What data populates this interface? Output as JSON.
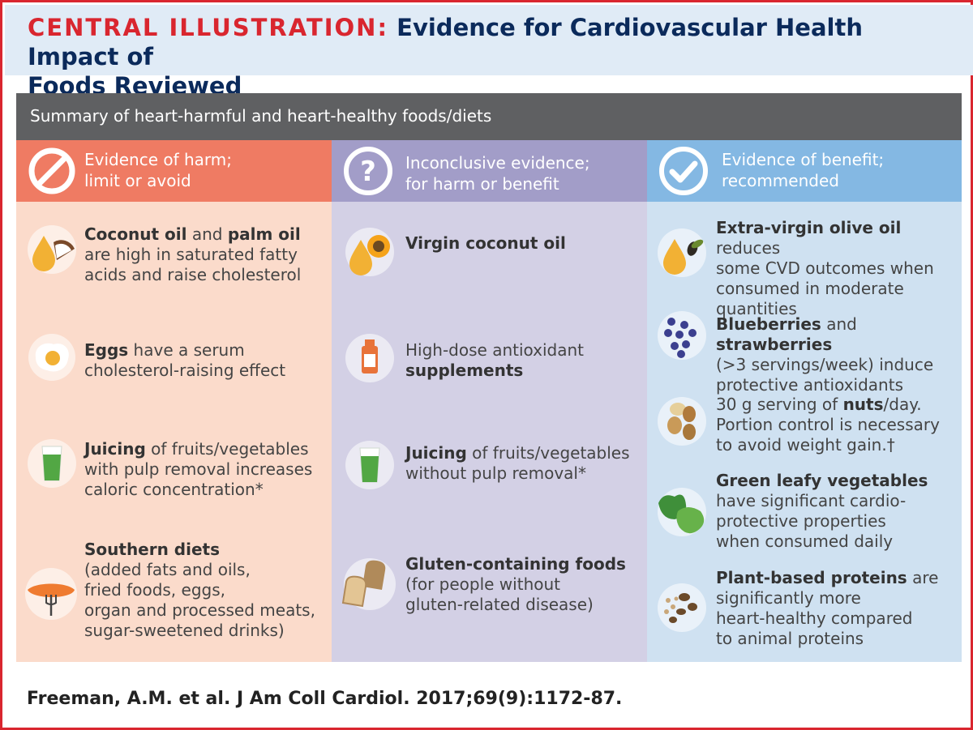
{
  "header": {
    "label": "CENTRAL ILLUSTRATION:",
    "title_line1": "Evidence for Cardiovascular Health Impact of",
    "title_line2": "Foods Reviewed"
  },
  "summary": "Summary of heart-harmful and heart-healthy foods/diets",
  "columns": {
    "harm": {
      "heading_line1": "Evidence of harm;",
      "heading_line2": "limit or avoid",
      "color": "#ef7b63",
      "bg": "#fbdbcb",
      "items": [
        {
          "icon": "coconut-oil-icon",
          "b1": "Coconut oil",
          "t1": " and ",
          "b2": "palm oil",
          "rest": "are high in saturated fatty acids and raise cholesterol"
        },
        {
          "icon": "egg-icon",
          "b1": "Eggs",
          "t1": " have a serum",
          "rest": "cholesterol-raising effect"
        },
        {
          "icon": "juice-icon",
          "b1": "Juicing",
          "t1": " of fruits/vegetables",
          "rest": "with pulp removal increases caloric concentration*"
        },
        {
          "icon": "sausage-fork-icon",
          "b1": "Southern diets",
          "rest1": "(added fats and oils,",
          "rest2": "fried foods, eggs,",
          "rest3": "organ and processed meats,",
          "rest4": "sugar-sweetened drinks)"
        }
      ]
    },
    "inconclusive": {
      "heading_line1": "Inconclusive evidence;",
      "heading_line2": "for harm or benefit",
      "color": "#a29dc8",
      "bg": "#d3d0e5",
      "items": [
        {
          "icon": "virgin-coconut-oil-icon",
          "b1": "Virgin coconut oil"
        },
        {
          "icon": "supplement-bottle-icon",
          "t1": "High-dose antioxidant",
          "b1": "supplements"
        },
        {
          "icon": "juice-icon",
          "b1": "Juicing",
          "t1": " of fruits/vegetables",
          "rest": "without pulp removal*"
        },
        {
          "icon": "bread-icon",
          "b1": "Gluten-containing foods",
          "rest1": "(for people without",
          "rest2": "gluten-related disease)"
        }
      ]
    },
    "benefit": {
      "heading_line1": "Evidence of benefit;",
      "heading_line2": "recommended",
      "color": "#84b8e3",
      "bg": "#cfe1f1",
      "items": [
        {
          "icon": "olive-oil-icon",
          "b1": "Extra-virgin olive oil",
          "t1": " reduces",
          "rest1": "some CVD outcomes when",
          "rest2": "consumed in moderate",
          "rest3": "quantities"
        },
        {
          "icon": "berries-icon",
          "b1": "Blueberries",
          "t1": " and ",
          "b2": "strawberries",
          "rest1": "(>3 servings/week) induce",
          "rest2": "protective antioxidants"
        },
        {
          "icon": "nuts-icon",
          "t1": "30 g serving of ",
          "b1": "nuts",
          "t2": "/day.",
          "rest1": "Portion control is necessary",
          "rest2": "to avoid weight gain.†"
        },
        {
          "icon": "leafy-greens-icon",
          "b1": "Green leafy vegetables",
          "rest1": "have significant cardio-",
          "rest2": "protective properties",
          "rest3": "when consumed daily"
        },
        {
          "icon": "legumes-icon",
          "b1": "Plant-based proteins",
          "t1": " are",
          "rest1": "significantly more",
          "rest2": "heart-healthy compared",
          "rest3": "to animal proteins"
        }
      ]
    }
  },
  "footer": "Freeman, A.M. et al. J Am Coll Cardiol. 2017;69(9):1172-87."
}
